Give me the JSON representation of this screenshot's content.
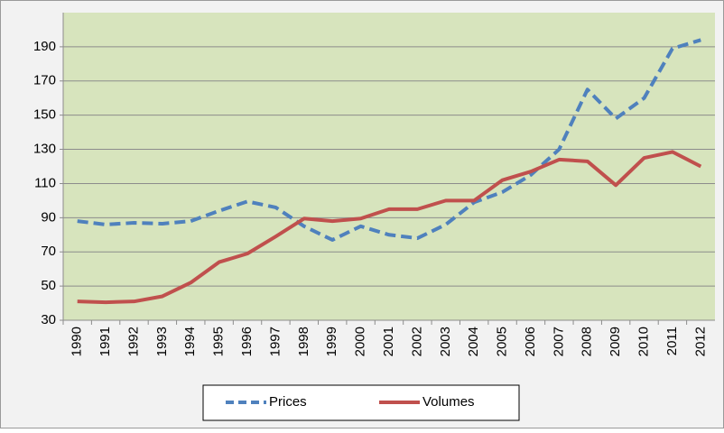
{
  "chart_data": {
    "type": "line",
    "categories": [
      "1990",
      "1991",
      "1992",
      "1993",
      "1994",
      "1995",
      "1996",
      "1997",
      "1998",
      "1999",
      "2000",
      "2001",
      "2002",
      "2003",
      "2004",
      "2005",
      "2006",
      "2007",
      "2008",
      "2009",
      "2010",
      "2011",
      "2012"
    ],
    "series": [
      {
        "name": "Prices",
        "color": "#4f81bd",
        "dashed": true,
        "values": [
          88,
          86,
          87,
          86.5,
          88,
          94,
          99.5,
          96,
          85,
          77,
          85,
          80,
          78,
          86,
          99,
          105,
          115,
          130,
          165,
          148,
          160,
          189,
          194
        ]
      },
      {
        "name": "Volumes",
        "color": "#c0504d",
        "dashed": false,
        "values": [
          41,
          40.5,
          41,
          44,
          52,
          64,
          69,
          79,
          89.5,
          88,
          89.5,
          95,
          95,
          100,
          100,
          112,
          117,
          124,
          123,
          109,
          125,
          128.5,
          120
        ]
      }
    ],
    "ylim": [
      30,
      210
    ],
    "yticks": [
      30,
      50,
      70,
      90,
      110,
      130,
      150,
      170,
      190
    ],
    "grid": true,
    "legend": "bottom"
  }
}
